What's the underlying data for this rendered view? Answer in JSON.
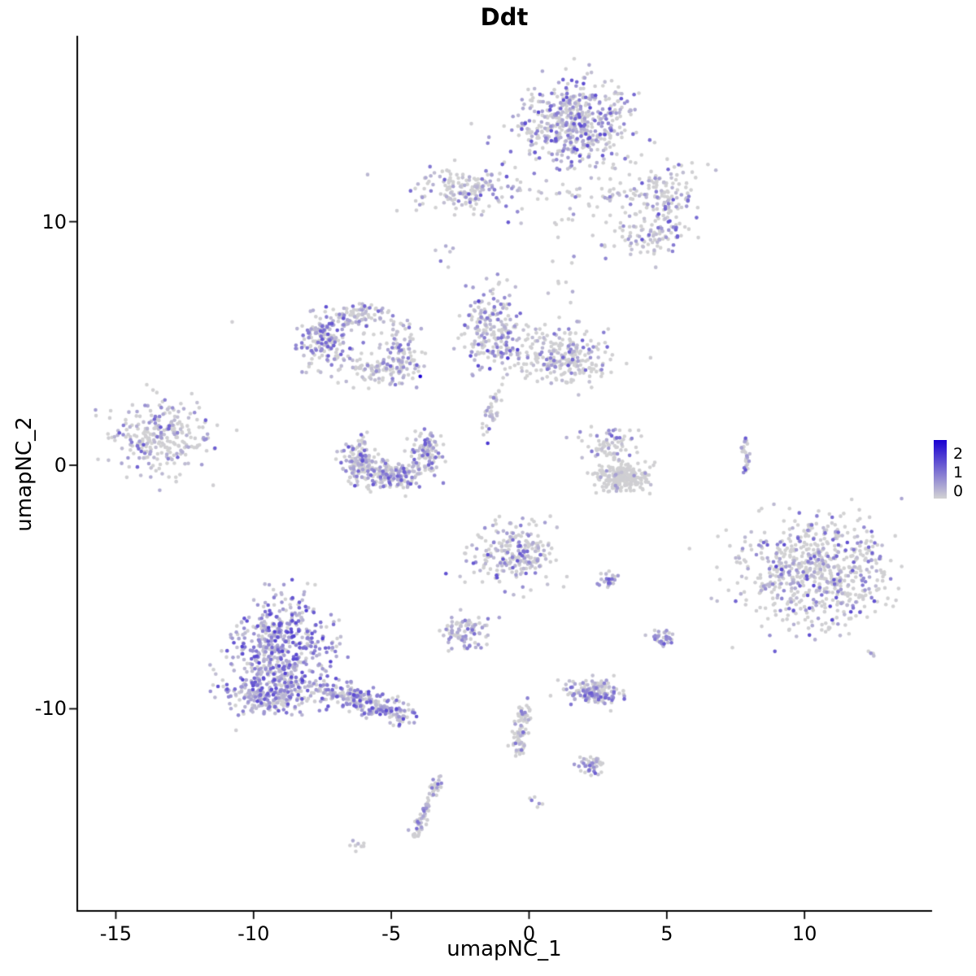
{
  "chart_data": {
    "type": "scatter",
    "title": "Ddt",
    "xlabel": "umapNC_1",
    "ylabel": "umapNC_2",
    "x_ticks": [
      -15,
      -10,
      -5,
      0,
      5,
      10
    ],
    "y_ticks": [
      -10,
      0,
      10
    ],
    "xlim": [
      -16.4,
      14.6
    ],
    "ylim": [
      -18.3,
      17.6
    ],
    "grid": false,
    "legend_position": "right",
    "point_radius": 2.3,
    "colors": {
      "low": "#D3D3D3",
      "high": "#1A00D2",
      "axis": "#000000",
      "background": "#FFFFFF"
    },
    "legend": {
      "labels": [
        "2",
        "1",
        "0"
      ],
      "value_max": 2.6
    },
    "clusters": [
      {
        "name": "top-island-core",
        "cx": 1.6,
        "cy": 14.0,
        "sx": 1.0,
        "sy": 0.85,
        "n": 520,
        "frac": 0.55,
        "vmax": 1.7
      },
      {
        "name": "top-right-arm-upper",
        "cx": 4.8,
        "cy": 11.2,
        "sx": 0.75,
        "sy": 0.6,
        "n": 120,
        "frac": 0.4,
        "vmax": 1.5
      },
      {
        "name": "top-right-arm-lower",
        "cx": 4.5,
        "cy": 9.5,
        "sx": 0.6,
        "sy": 0.5,
        "n": 90,
        "frac": 0.5,
        "vmax": 1.6
      },
      {
        "name": "top-connector",
        "cx": 2.4,
        "cy": 10.6,
        "sx": 0.9,
        "sy": 0.9,
        "n": 70,
        "frac": 0.3,
        "vmax": 1.2
      },
      {
        "name": "upper-left-island",
        "cx": -2.2,
        "cy": 11.3,
        "sx": 0.95,
        "sy": 0.5,
        "n": 170,
        "frac": 0.45,
        "vmax": 1.5
      },
      {
        "name": "upper-left-sparse",
        "cx": -3.0,
        "cy": 8.5,
        "sx": 0.2,
        "sy": 0.3,
        "n": 6,
        "frac": 0.5,
        "vmax": 1.2
      },
      {
        "name": "midleft-dense-lobe",
        "cx": -7.4,
        "cy": 5.1,
        "sx": 0.45,
        "sy": 0.55,
        "n": 170,
        "frac": 0.6,
        "vmax": 1.6
      },
      {
        "name": "midleft-top-arc",
        "cx": -6.1,
        "cy": 6.1,
        "sx": 0.6,
        "sy": 0.3,
        "n": 90,
        "frac": 0.45,
        "vmax": 1.4
      },
      {
        "name": "midleft-right-arm",
        "cx": -4.6,
        "cy": 4.6,
        "sx": 0.4,
        "sy": 0.65,
        "n": 100,
        "frac": 0.4,
        "vmax": 1.4
      },
      {
        "name": "midleft-bottom-arc",
        "cx": -5.6,
        "cy": 3.9,
        "sx": 0.65,
        "sy": 0.3,
        "n": 80,
        "frac": 0.4,
        "vmax": 1.3
      },
      {
        "name": "center-island-left",
        "cx": -1.3,
        "cy": 5.5,
        "sx": 0.55,
        "sy": 0.85,
        "n": 210,
        "frac": 0.5,
        "vmax": 1.8
      },
      {
        "name": "center-island-right",
        "cx": 1.2,
        "cy": 4.4,
        "sx": 0.95,
        "sy": 0.6,
        "n": 260,
        "frac": 0.35,
        "vmax": 1.5
      },
      {
        "name": "center-tail",
        "shape": "stripe",
        "cx": -1.35,
        "cy": 2.2,
        "angle": 75,
        "len": 0.9,
        "sx": 0.12,
        "sy": 0.15,
        "n": 35,
        "frac": 0.4,
        "vmax": 1.5
      },
      {
        "name": "far-left-island",
        "cx": -13.3,
        "cy": 1.2,
        "sx": 0.85,
        "sy": 0.75,
        "n": 270,
        "frac": 0.4,
        "vmax": 1.5
      },
      {
        "name": "crescent-left",
        "cx": -6.1,
        "cy": 0.1,
        "sx": 0.35,
        "sy": 0.5,
        "n": 140,
        "frac": 0.55,
        "vmax": 1.6
      },
      {
        "name": "crescent-bottom",
        "cx": -4.9,
        "cy": -0.4,
        "sx": 0.55,
        "sy": 0.28,
        "n": 160,
        "frac": 0.5,
        "vmax": 1.6
      },
      {
        "name": "crescent-right",
        "cx": -3.7,
        "cy": 0.5,
        "sx": 0.28,
        "sy": 0.5,
        "n": 100,
        "frac": 0.45,
        "vmax": 1.5
      },
      {
        "name": "small-right-top",
        "cx": 2.9,
        "cy": 0.8,
        "sx": 0.45,
        "sy": 0.4,
        "n": 70,
        "frac": 0.35,
        "vmax": 1.4
      },
      {
        "name": "small-right-gray",
        "cx": 3.4,
        "cy": -0.5,
        "sx": 0.5,
        "sy": 0.3,
        "n": 240,
        "frac": 0.04,
        "vmax": 0.8
      },
      {
        "name": "right-sliver",
        "shape": "stripe",
        "cx": 7.85,
        "cy": 0.35,
        "angle": 90,
        "len": 0.75,
        "sx": 0.07,
        "sy": 0.1,
        "n": 28,
        "frac": 0.5,
        "vmax": 1.6
      },
      {
        "name": "big-right-island",
        "cx": 10.4,
        "cy": -4.4,
        "sx": 1.35,
        "sy": 1.15,
        "n": 680,
        "frac": 0.35,
        "vmax": 1.7
      },
      {
        "name": "center-lower-island",
        "cx": -0.5,
        "cy": -3.6,
        "sx": 0.75,
        "sy": 0.65,
        "n": 230,
        "frac": 0.45,
        "vmax": 1.6
      },
      {
        "name": "small-mid-island",
        "cx": -2.3,
        "cy": -6.8,
        "sx": 0.5,
        "sy": 0.32,
        "n": 90,
        "frac": 0.45,
        "vmax": 1.5
      },
      {
        "name": "bottomleft-core",
        "cx": -9.0,
        "cy": -7.4,
        "sx": 0.95,
        "sy": 1.0,
        "n": 480,
        "frac": 0.75,
        "vmax": 1.8
      },
      {
        "name": "bottomleft-lower",
        "cx": -9.4,
        "cy": -9.3,
        "sx": 0.8,
        "sy": 0.5,
        "n": 280,
        "frac": 0.7,
        "vmax": 1.7
      },
      {
        "name": "bottomleft-tail",
        "shape": "stripe",
        "cx": -5.9,
        "cy": -9.7,
        "angle": -21,
        "len": 1.6,
        "sx": 0.3,
        "sy": 0.25,
        "n": 250,
        "frac": 0.65,
        "vmax": 1.7
      },
      {
        "name": "small-dot-a",
        "cx": 2.9,
        "cy": -4.7,
        "sx": 0.17,
        "sy": 0.15,
        "n": 24,
        "frac": 0.6,
        "vmax": 1.5
      },
      {
        "name": "small-dot-b",
        "cx": 4.9,
        "cy": -7.1,
        "sx": 0.2,
        "sy": 0.17,
        "n": 32,
        "frac": 0.55,
        "vmax": 1.5
      },
      {
        "name": "bottom-center-island",
        "cx": 2.3,
        "cy": -9.3,
        "sx": 0.5,
        "sy": 0.24,
        "n": 170,
        "frac": 0.6,
        "vmax": 1.5
      },
      {
        "name": "bottom-strand",
        "shape": "stripe",
        "cx": -0.3,
        "cy": -10.9,
        "angle": 83,
        "len": 1.0,
        "sx": 0.13,
        "sy": 0.15,
        "n": 85,
        "frac": 0.35,
        "vmax": 1.4
      },
      {
        "name": "small-dot-c",
        "cx": 2.3,
        "cy": -12.3,
        "sx": 0.22,
        "sy": 0.2,
        "n": 45,
        "frac": 0.5,
        "vmax": 1.5
      },
      {
        "name": "bottom-sliver",
        "shape": "stripe",
        "cx": -3.75,
        "cy": -14.1,
        "angle": 69,
        "len": 1.3,
        "sx": 0.1,
        "sy": 0.14,
        "n": 75,
        "frac": 0.45,
        "vmax": 1.4
      },
      {
        "name": "tiny-dot-d",
        "cx": 0.3,
        "cy": -13.8,
        "sx": 0.12,
        "sy": 0.1,
        "n": 6,
        "frac": 0.7,
        "vmax": 1.3
      },
      {
        "name": "tiny-dot-e",
        "cx": -6.2,
        "cy": -15.6,
        "sx": 0.2,
        "sy": 0.1,
        "n": 8,
        "frac": 0.15,
        "vmax": 0.8
      },
      {
        "name": "lone-point",
        "cx": -10.7,
        "cy": 5.9,
        "sx": 0.05,
        "sy": 0.05,
        "n": 1,
        "frac": 0,
        "vmax": 0
      },
      {
        "name": "sparse-between",
        "cx": 1.2,
        "cy": 7.9,
        "sx": 0.5,
        "sy": 0.9,
        "n": 12,
        "frac": 0.3,
        "vmax": 1.2
      }
    ],
    "highlight_points": [
      {
        "x": -3.95,
        "y": 3.65,
        "v": 2.6
      },
      {
        "x": -1.5,
        "y": 0.9,
        "v": 1.9
      }
    ]
  }
}
